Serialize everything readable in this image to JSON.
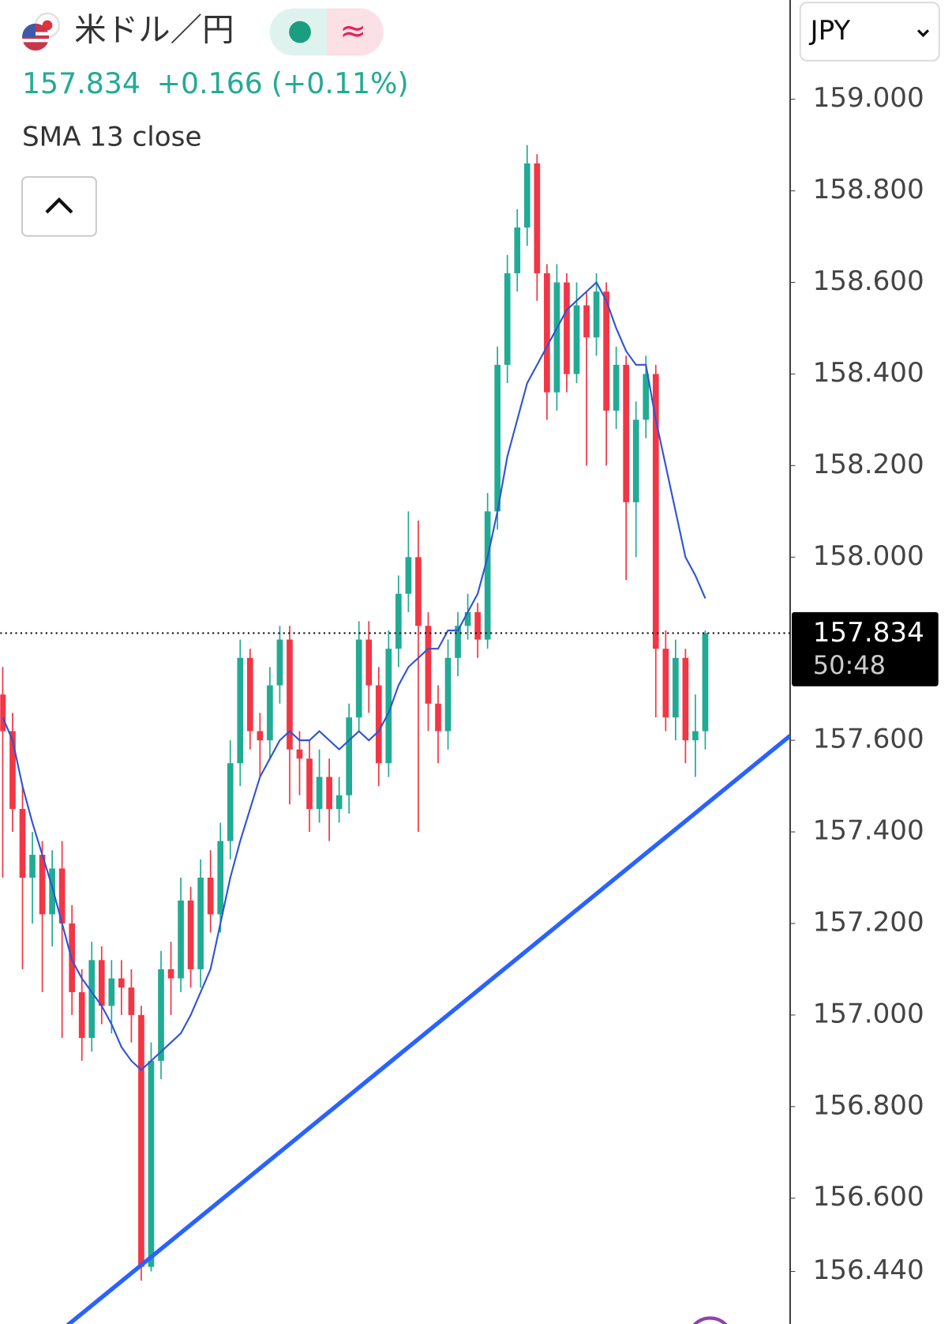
{
  "header": {
    "symbol": "米ドル／円",
    "price": "157.834",
    "change": "+0.166",
    "change_pct": "(+0.11%)",
    "indicator": "SMA 13 close",
    "currency": "JPY"
  },
  "chart_data": {
    "type": "candlestick",
    "candles": {
      "open": [
        157.7,
        157.62,
        157.45,
        157.3,
        157.35,
        157.22,
        157.32,
        157.2,
        157.05,
        156.95,
        157.12,
        157.02,
        157.08,
        157.06,
        157.0,
        156.45,
        156.9,
        157.1,
        157.08,
        157.25,
        157.1,
        157.3,
        157.22,
        157.38,
        157.55,
        157.78,
        157.62,
        157.6,
        157.72,
        157.82,
        157.58,
        157.56,
        157.45,
        157.52,
        157.45,
        157.48,
        157.65,
        157.82,
        157.72,
        157.55,
        157.8,
        157.92,
        158.0,
        157.85,
        157.68,
        157.62,
        157.78,
        157.85,
        157.88,
        157.82,
        158.1,
        158.42,
        158.62,
        158.72,
        158.86,
        158.62,
        158.36,
        158.6,
        158.4,
        158.55,
        158.48,
        158.58,
        158.32,
        158.42,
        158.12,
        158.3,
        158.4,
        157.8,
        157.65,
        157.78,
        157.6,
        157.62
      ],
      "high": [
        157.76,
        157.66,
        157.5,
        157.4,
        157.38,
        157.36,
        157.38,
        157.24,
        157.1,
        157.16,
        157.15,
        157.12,
        157.12,
        157.1,
        157.02,
        156.94,
        157.14,
        157.16,
        157.3,
        157.28,
        157.34,
        157.36,
        157.42,
        157.6,
        157.82,
        157.8,
        157.66,
        157.76,
        157.85,
        157.85,
        157.62,
        157.6,
        157.58,
        157.56,
        157.52,
        157.68,
        157.86,
        157.86,
        157.76,
        157.84,
        157.96,
        158.1,
        158.08,
        157.88,
        157.72,
        157.82,
        157.88,
        157.92,
        157.9,
        158.14,
        158.46,
        158.66,
        158.76,
        158.9,
        158.88,
        158.64,
        158.64,
        158.62,
        158.6,
        158.58,
        158.62,
        158.6,
        158.46,
        158.44,
        158.34,
        158.44,
        158.42,
        157.84,
        157.82,
        157.8,
        157.7,
        157.84
      ],
      "low": [
        157.3,
        157.4,
        157.1,
        157.2,
        157.05,
        157.15,
        156.95,
        157.0,
        156.9,
        156.92,
        156.98,
        156.96,
        157.0,
        156.94,
        156.42,
        156.44,
        156.86,
        157.0,
        157.05,
        157.06,
        157.06,
        157.18,
        157.18,
        157.34,
        157.5,
        157.58,
        157.52,
        157.56,
        157.68,
        157.46,
        157.48,
        157.4,
        157.42,
        157.38,
        157.42,
        157.44,
        157.62,
        157.66,
        157.5,
        157.52,
        157.76,
        157.88,
        157.4,
        157.62,
        157.55,
        157.58,
        157.74,
        157.82,
        157.78,
        157.8,
        158.06,
        158.38,
        158.58,
        158.68,
        158.56,
        158.3,
        158.32,
        158.36,
        158.38,
        158.2,
        158.44,
        158.2,
        158.28,
        157.95,
        158.0,
        158.26,
        157.65,
        157.62,
        157.6,
        157.55,
        157.52,
        157.58
      ],
      "close": [
        157.62,
        157.45,
        157.3,
        157.35,
        157.22,
        157.32,
        157.2,
        157.05,
        156.95,
        157.12,
        157.02,
        157.08,
        157.06,
        157.0,
        156.45,
        156.9,
        157.1,
        157.08,
        157.25,
        157.1,
        157.3,
        157.22,
        157.38,
        157.55,
        157.78,
        157.62,
        157.6,
        157.72,
        157.82,
        157.58,
        157.56,
        157.45,
        157.52,
        157.45,
        157.48,
        157.65,
        157.82,
        157.72,
        157.55,
        157.8,
        157.92,
        158.0,
        157.85,
        157.68,
        157.62,
        157.78,
        157.85,
        157.88,
        157.82,
        158.1,
        158.42,
        158.62,
        158.72,
        158.86,
        158.62,
        158.36,
        158.6,
        158.4,
        158.55,
        158.48,
        158.58,
        158.32,
        158.42,
        158.12,
        158.3,
        158.4,
        157.8,
        157.65,
        157.78,
        157.6,
        157.62,
        157.834
      ]
    },
    "up_color": "#22ab94",
    "down_color": "#f23645",
    "sma": {
      "name": "SMA 13 close",
      "color": "#2f54d4",
      "values": [
        157.65,
        157.6,
        157.5,
        157.42,
        157.35,
        157.28,
        157.2,
        157.12,
        157.08,
        157.05,
        157.02,
        156.98,
        156.93,
        156.9,
        156.88,
        156.9,
        156.92,
        156.94,
        156.96,
        157.0,
        157.05,
        157.1,
        157.2,
        157.3,
        157.38,
        157.45,
        157.52,
        157.56,
        157.6,
        157.62,
        157.6,
        157.6,
        157.62,
        157.6,
        157.58,
        157.6,
        157.62,
        157.6,
        157.62,
        157.66,
        157.72,
        157.76,
        157.78,
        157.8,
        157.8,
        157.84,
        157.84,
        157.88,
        157.92,
        158.0,
        158.1,
        158.22,
        158.3,
        158.38,
        158.42,
        158.46,
        158.5,
        158.54,
        158.56,
        158.58,
        158.6,
        158.56,
        158.5,
        158.45,
        158.42,
        158.42,
        158.3,
        158.2,
        158.1,
        158.0,
        157.96,
        157.91
      ]
    },
    "trendline": {
      "color": "#2962ff",
      "values": [
        156.3,
        157.61
      ]
    },
    "ylim": [
      156.27,
      159.18
    ],
    "yticks": [
      {
        "value": 159,
        "label": "159.000"
      },
      {
        "value": 158.8,
        "label": "158.800"
      },
      {
        "value": 158.6,
        "label": "158.600"
      },
      {
        "value": 158.4,
        "label": "158.400"
      },
      {
        "value": 158.2,
        "label": "158.200"
      },
      {
        "value": 158,
        "label": "158.000"
      },
      {
        "value": 157.6,
        "label": "157.600"
      },
      {
        "value": 157.4,
        "label": "157.400"
      },
      {
        "value": 157.2,
        "label": "157.200"
      },
      {
        "value": 157,
        "label": "157.000"
      },
      {
        "value": 156.8,
        "label": "156.800"
      },
      {
        "value": 156.6,
        "label": "156.600"
      },
      {
        "value": 156.44,
        "label": "156.440"
      }
    ],
    "current_price": {
      "value": 157.834,
      "label": "157.834"
    },
    "countdown": "50:48"
  }
}
